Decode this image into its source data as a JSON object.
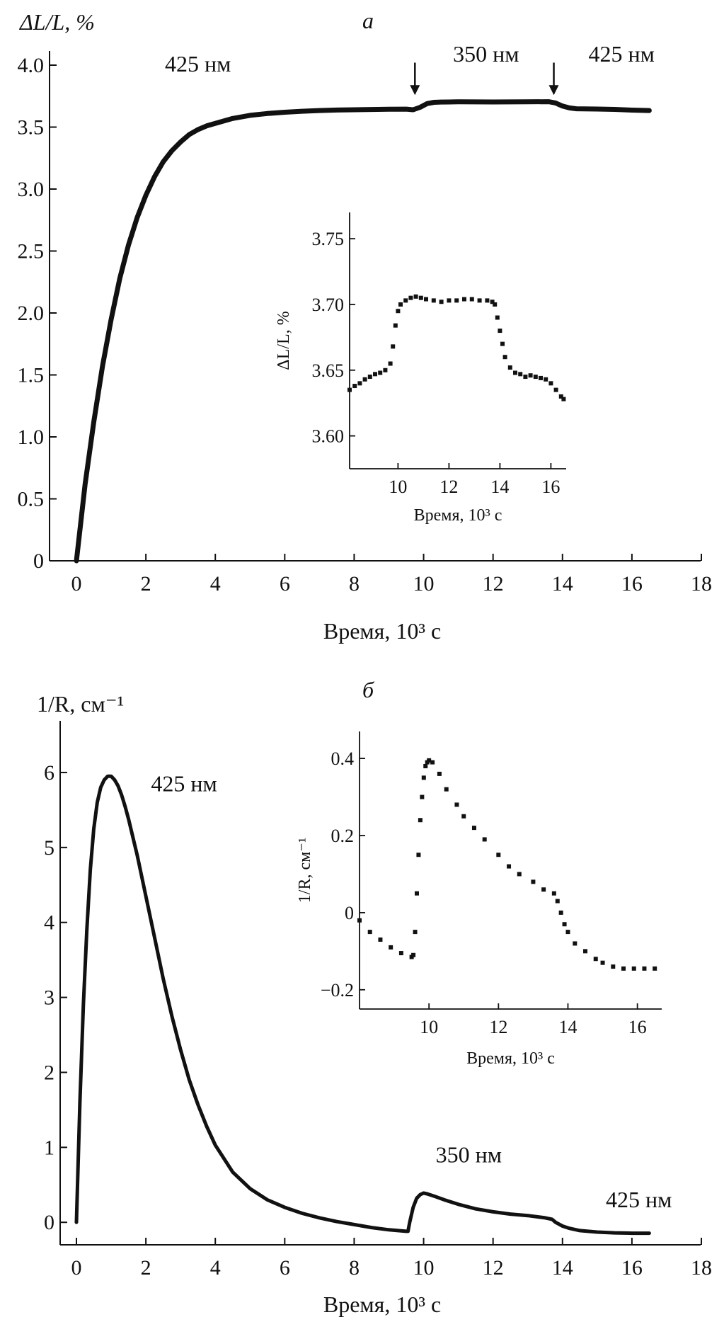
{
  "chart_data": [
    {
      "id": "a",
      "type": "line",
      "panel_label": "а",
      "xlabel": "Время, 10³ с",
      "ylabel": "ΔL/L, %",
      "xlim": [
        0,
        18
      ],
      "ylim": [
        0,
        4.0
      ],
      "xticks": [
        0,
        2,
        4,
        6,
        8,
        10,
        12,
        14,
        16,
        18
      ],
      "xtick_labels": [
        "0",
        "2",
        "4",
        "6",
        "8",
        "10",
        "12",
        "14",
        "16",
        "18"
      ],
      "yticks": [
        0,
        0.5,
        1.0,
        1.5,
        2.0,
        2.5,
        3.0,
        3.5,
        4.0
      ],
      "ytick_labels": [
        "0",
        "0.5",
        "1.0",
        "1.5",
        "2.0",
        "2.5",
        "3.0",
        "3.5",
        "4.0"
      ],
      "series": [
        {
          "x": [
            0,
            0.25,
            0.5,
            0.75,
            1,
            1.25,
            1.5,
            1.75,
            2,
            2.25,
            2.5,
            2.75,
            3,
            3.25,
            3.5,
            3.75,
            4,
            4.5,
            5,
            5.5,
            6,
            6.5,
            7,
            7.5,
            8,
            8.5,
            9,
            9.5,
            9.7,
            9.9,
            10.1,
            10.3,
            10.5,
            11,
            12,
            13,
            13.6,
            13.8,
            14,
            14.2,
            14.4,
            15,
            15.5,
            16,
            16.5
          ],
          "y": [
            0,
            0.62,
            1.12,
            1.57,
            1.95,
            2.28,
            2.55,
            2.77,
            2.95,
            3.1,
            3.22,
            3.31,
            3.38,
            3.44,
            3.48,
            3.51,
            3.53,
            3.57,
            3.595,
            3.61,
            3.62,
            3.628,
            3.634,
            3.638,
            3.64,
            3.642,
            3.644,
            3.645,
            3.64,
            3.66,
            3.69,
            3.7,
            3.702,
            3.704,
            3.703,
            3.704,
            3.705,
            3.695,
            3.67,
            3.655,
            3.648,
            3.646,
            3.643,
            3.637,
            3.634
          ]
        }
      ],
      "annotations": [
        {
          "text": "425 нм",
          "x": 3.5,
          "y": 3.95
        },
        {
          "text": "350 нм",
          "x": 11.8,
          "y": 4.03
        },
        {
          "text": "425 нм",
          "x": 15.7,
          "y": 4.03
        }
      ],
      "arrows_x": [
        9.75,
        13.75
      ],
      "inset": {
        "type": "scatter",
        "xlabel": "Время, 10³ с",
        "ylabel": "ΔL/L, %",
        "xlim": [
          8.1,
          16.6
        ],
        "ylim": [
          3.575,
          3.77
        ],
        "xticks": [
          10,
          12,
          14,
          16
        ],
        "xtick_labels": [
          "10",
          "12",
          "14",
          "16"
        ],
        "yticks": [
          3.6,
          3.65,
          3.7,
          3.75
        ],
        "ytick_labels": [
          "3.60",
          "3.65",
          "3.70",
          "3.75"
        ],
        "x": [
          8.1,
          8.3,
          8.5,
          8.7,
          8.9,
          9.1,
          9.3,
          9.5,
          9.7,
          9.8,
          9.9,
          10.0,
          10.1,
          10.3,
          10.5,
          10.7,
          10.9,
          11.1,
          11.4,
          11.7,
          12.0,
          12.3,
          12.6,
          12.9,
          13.2,
          13.5,
          13.7,
          13.8,
          13.9,
          14.0,
          14.1,
          14.2,
          14.4,
          14.6,
          14.8,
          15.0,
          15.2,
          15.4,
          15.6,
          15.8,
          16.0,
          16.2,
          16.4,
          16.5
        ],
        "y": [
          3.635,
          3.638,
          3.64,
          3.643,
          3.645,
          3.647,
          3.648,
          3.65,
          3.655,
          3.668,
          3.684,
          3.695,
          3.7,
          3.703,
          3.705,
          3.706,
          3.705,
          3.704,
          3.703,
          3.702,
          3.703,
          3.703,
          3.704,
          3.704,
          3.703,
          3.703,
          3.702,
          3.7,
          3.69,
          3.68,
          3.67,
          3.66,
          3.652,
          3.648,
          3.647,
          3.645,
          3.646,
          3.645,
          3.644,
          3.643,
          3.64,
          3.635,
          3.63,
          3.628
        ]
      }
    },
    {
      "id": "b",
      "type": "line",
      "panel_label": "б",
      "xlabel": "Время, 10³ с",
      "ylabel": "1/R, см⁻¹",
      "xlim": [
        0,
        18
      ],
      "ylim": [
        -0.3,
        6.5
      ],
      "xticks": [
        0,
        2,
        4,
        6,
        8,
        10,
        12,
        14,
        16,
        18
      ],
      "xtick_labels": [
        "0",
        "2",
        "4",
        "6",
        "8",
        "10",
        "12",
        "14",
        "16",
        "18"
      ],
      "yticks": [
        0,
        1,
        2,
        3,
        4,
        5,
        6
      ],
      "ytick_labels": [
        "0",
        "1",
        "2",
        "3",
        "4",
        "5",
        "6"
      ],
      "series": [
        {
          "x": [
            0,
            0.1,
            0.2,
            0.3,
            0.4,
            0.5,
            0.6,
            0.7,
            0.8,
            0.9,
            1.0,
            1.1,
            1.2,
            1.3,
            1.4,
            1.5,
            1.75,
            2.0,
            2.25,
            2.5,
            2.75,
            3.0,
            3.25,
            3.5,
            3.75,
            4.0,
            4.5,
            5.0,
            5.5,
            6.0,
            6.5,
            7.0,
            7.5,
            8.0,
            8.5,
            9.0,
            9.5,
            9.55,
            9.6,
            9.7,
            9.8,
            9.9,
            10.0,
            10.1,
            10.3,
            10.6,
            11.0,
            11.5,
            12.0,
            12.5,
            13.0,
            13.5,
            13.6,
            13.7,
            13.8,
            14.0,
            14.2,
            14.5,
            15.0,
            15.5,
            16.0,
            16.5
          ],
          "y": [
            0,
            1.6,
            2.9,
            3.9,
            4.7,
            5.25,
            5.6,
            5.8,
            5.9,
            5.95,
            5.95,
            5.9,
            5.82,
            5.7,
            5.55,
            5.38,
            4.9,
            4.35,
            3.8,
            3.25,
            2.75,
            2.3,
            1.9,
            1.57,
            1.28,
            1.03,
            0.67,
            0.45,
            0.3,
            0.2,
            0.12,
            0.06,
            0.01,
            -0.03,
            -0.07,
            -0.1,
            -0.12,
            -0.12,
            0.0,
            0.2,
            0.32,
            0.37,
            0.39,
            0.38,
            0.35,
            0.3,
            0.24,
            0.18,
            0.14,
            0.11,
            0.09,
            0.06,
            0.05,
            0.04,
            0.0,
            -0.05,
            -0.08,
            -0.11,
            -0.13,
            -0.14,
            -0.145,
            -0.145
          ]
        }
      ],
      "annotations": [
        {
          "text": "425 нм",
          "x": 3.1,
          "y": 5.75
        },
        {
          "text": "350 нм",
          "x": 11.3,
          "y": 0.8
        },
        {
          "text": "425 нм",
          "x": 16.2,
          "y": 0.2
        }
      ],
      "inset": {
        "type": "scatter",
        "xlabel": "Время, 10³ с",
        "ylabel": "1/R, см⁻¹",
        "xlim": [
          8.0,
          16.7
        ],
        "ylim": [
          -0.25,
          0.47
        ],
        "xticks": [
          10,
          12,
          14,
          16
        ],
        "xtick_labels": [
          "10",
          "12",
          "14",
          "16"
        ],
        "yticks": [
          -0.2,
          0,
          0.2,
          0.4
        ],
        "ytick_labels": [
          "−0.2",
          "0",
          "0.2",
          "0.4"
        ],
        "x": [
          8.0,
          8.3,
          8.6,
          8.9,
          9.2,
          9.5,
          9.55,
          9.6,
          9.65,
          9.7,
          9.75,
          9.8,
          9.85,
          9.9,
          9.95,
          10.0,
          10.1,
          10.3,
          10.5,
          10.8,
          11.0,
          11.3,
          11.6,
          12.0,
          12.3,
          12.6,
          13.0,
          13.3,
          13.6,
          13.7,
          13.8,
          13.9,
          14.0,
          14.2,
          14.5,
          14.8,
          15.0,
          15.3,
          15.6,
          15.9,
          16.2,
          16.5
        ],
        "y": [
          -0.02,
          -0.05,
          -0.07,
          -0.09,
          -0.105,
          -0.115,
          -0.11,
          -0.05,
          0.05,
          0.15,
          0.24,
          0.3,
          0.35,
          0.38,
          0.39,
          0.395,
          0.39,
          0.36,
          0.32,
          0.28,
          0.25,
          0.22,
          0.19,
          0.15,
          0.12,
          0.1,
          0.08,
          0.06,
          0.05,
          0.03,
          0.0,
          -0.03,
          -0.05,
          -0.08,
          -0.1,
          -0.12,
          -0.13,
          -0.14,
          -0.145,
          -0.145,
          -0.145,
          -0.145
        ]
      }
    }
  ]
}
